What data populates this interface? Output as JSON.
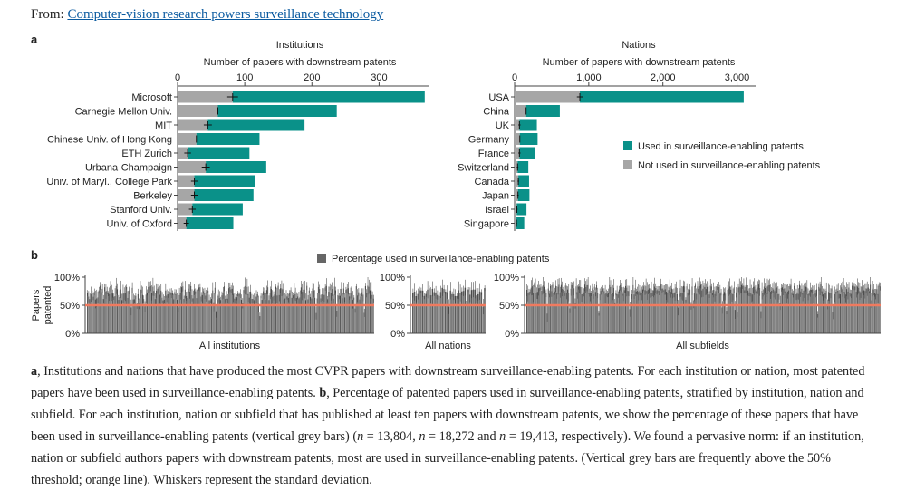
{
  "header": {
    "from_label": "From:",
    "link_text": "Computer-vision research powers surveillance technology"
  },
  "panel_labels": {
    "a": "a",
    "b": "b"
  },
  "colors": {
    "teal": "#0a9189",
    "grey": "#a6a6a6",
    "dark_grey": "#666666",
    "orange": "#f07a5f",
    "link": "#0a5aa0"
  },
  "chart_data": [
    {
      "type": "bar",
      "orientation": "horizontal-stacked",
      "title": "Institutions",
      "xlabel": "Number of papers with downstream patents",
      "xlim": [
        0,
        375
      ],
      "xticks": [
        0,
        100,
        200,
        300
      ],
      "tick_labels": [
        "0",
        "100",
        "200",
        "300"
      ],
      "categories": [
        "Microsoft",
        "Carnegie Mellon Univ.",
        "MIT",
        "Chinese Univ. of Hong Kong",
        "ETH Zurich",
        "Urbana-Champaign",
        "Univ. of Maryl., College Park",
        "Berkeley",
        "Stanford Univ.",
        "Univ. of Oxford"
      ],
      "series": [
        {
          "name": "Not used in surveillance-enabling patents",
          "values": [
            82,
            60,
            45,
            28,
            15,
            42,
            25,
            25,
            22,
            13
          ]
        },
        {
          "name": "Used in surveillance-enabling patents",
          "values": [
            286,
            177,
            144,
            94,
            92,
            90,
            91,
            88,
            75,
            70
          ]
        }
      ],
      "whiskers": [
        8,
        8,
        6,
        6,
        5,
        6,
        5,
        5,
        5,
        4
      ]
    },
    {
      "type": "bar",
      "orientation": "horizontal-stacked",
      "title": "Nations",
      "xlabel": "Number of papers with downstream patents",
      "xlim": [
        0,
        3250
      ],
      "xticks": [
        0,
        1000,
        2000,
        3000
      ],
      "tick_labels": [
        "0",
        "1,000",
        "2,000",
        "3,000"
      ],
      "categories": [
        "USA",
        "China",
        "UK",
        "Germany",
        "France",
        "Switzerland",
        "Canada",
        "Japan",
        "Israel",
        "Singapore"
      ],
      "series": [
        {
          "name": "Not used in surveillance-enabling patents",
          "values": [
            880,
            155,
            65,
            70,
            65,
            40,
            50,
            45,
            30,
            25
          ]
        },
        {
          "name": "Used in surveillance-enabling patents",
          "values": [
            2210,
            455,
            235,
            240,
            210,
            145,
            145,
            155,
            130,
            105
          ]
        }
      ],
      "whiskers": [
        40,
        25,
        15,
        15,
        15,
        10,
        10,
        10,
        10,
        8
      ],
      "legend": {
        "placement": "right",
        "entries": [
          "Used in surveillance-enabling patents",
          "Not used in surveillance-enabling patents"
        ]
      }
    },
    {
      "type": "bar",
      "orientation": "vertical",
      "legend": "Percentage used in surveillance-enabling patents",
      "ylabel": "Papers patented",
      "ylim": [
        0,
        100
      ],
      "yticks": [
        "0%",
        "50%",
        "100%"
      ],
      "threshold": 50,
      "panels": [
        {
          "name": "All institutions",
          "n": 250,
          "mean": 72,
          "spread": 13
        },
        {
          "name": "All nations",
          "n": 45,
          "mean": 74,
          "spread": 8
        },
        {
          "name": "All subfields",
          "n": 330,
          "mean": 78,
          "spread": 9
        }
      ]
    }
  ],
  "caption": {
    "a_label": "a",
    "a_text": ", Institutions and nations that have produced the most CVPR papers with downstream surveillance-enabling patents. For each institution or nation, most patented papers have been used in surveillance-enabling patents. ",
    "b_label": "b",
    "b_text1": ", Percentage of patented papers used in surveillance-enabling patents, stratified by institution, nation and subfield. For each institution, nation or subfield that has published at least ten papers with downstream patents, we show the percentage of these papers that have been used in surveillance-enabling patents (vertical grey bars) (",
    "n_symbol": "n",
    "n1": " = 13,804, ",
    "n2": " = 18,272 and ",
    "n3": " = 19,413, respectively). We found a pervasive norm: if an institution, nation or subfield authors papers with downstream patents, most are used in surveillance-enabling patents. (Vertical grey bars are frequently above the 50% threshold; orange line). Whiskers represent the standard deviation."
  }
}
